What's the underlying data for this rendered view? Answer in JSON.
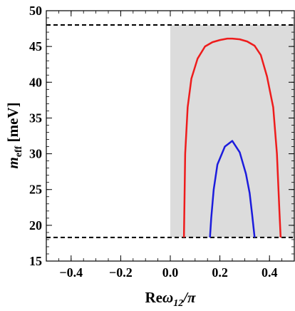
{
  "chart_data": {
    "type": "line",
    "xlabel_main": "Re",
    "xlabel_omega": "ω",
    "xlabel_sub": "12",
    "xlabel_tail": "/π",
    "ylabel_main": "m",
    "ylabel_sub": "eff",
    "ylabel_unit": " [meV]",
    "xlim": [
      -0.5,
      0.5
    ],
    "ylim": [
      15,
      50
    ],
    "xticks": [
      -0.4,
      -0.2,
      0.0,
      0.2,
      0.4
    ],
    "xtick_labels": [
      "−0.4",
      "−0.2",
      "0.0",
      "0.2",
      "0.4"
    ],
    "yticks": [
      15,
      20,
      25,
      30,
      35,
      40,
      45,
      50
    ],
    "ytick_labels": [
      "15",
      "20",
      "25",
      "30",
      "35",
      "40",
      "45",
      "50"
    ],
    "shaded_region": {
      "color": "#dcdcdc",
      "x": [
        0.0,
        0.5
      ],
      "y": [
        18.3,
        48.0
      ]
    },
    "hlines": [
      {
        "y": 48.0,
        "style": "dashed",
        "color": "#000000"
      },
      {
        "y": 18.3,
        "style": "dashed",
        "color": "#000000"
      }
    ],
    "series": [
      {
        "color": "#ee1c1c",
        "x": [
          0.055,
          0.06,
          0.07,
          0.085,
          0.11,
          0.14,
          0.17,
          0.2,
          0.23,
          0.25,
          0.28,
          0.31,
          0.34,
          0.365,
          0.39,
          0.415,
          0.43,
          0.44,
          0.445
        ],
        "y": [
          18.3,
          30.0,
          36.5,
          40.5,
          43.3,
          45.0,
          45.6,
          45.9,
          46.1,
          46.1,
          46.0,
          45.7,
          45.1,
          43.8,
          40.8,
          36.5,
          30.0,
          22.0,
          18.3
        ]
      },
      {
        "color": "#1c1cdd",
        "x": [
          0.16,
          0.165,
          0.175,
          0.19,
          0.22,
          0.25,
          0.28,
          0.305,
          0.32,
          0.33,
          0.34
        ],
        "y": [
          18.3,
          21.0,
          25.0,
          28.5,
          31.0,
          31.8,
          30.2,
          27.2,
          24.5,
          21.5,
          18.3
        ]
      }
    ]
  }
}
